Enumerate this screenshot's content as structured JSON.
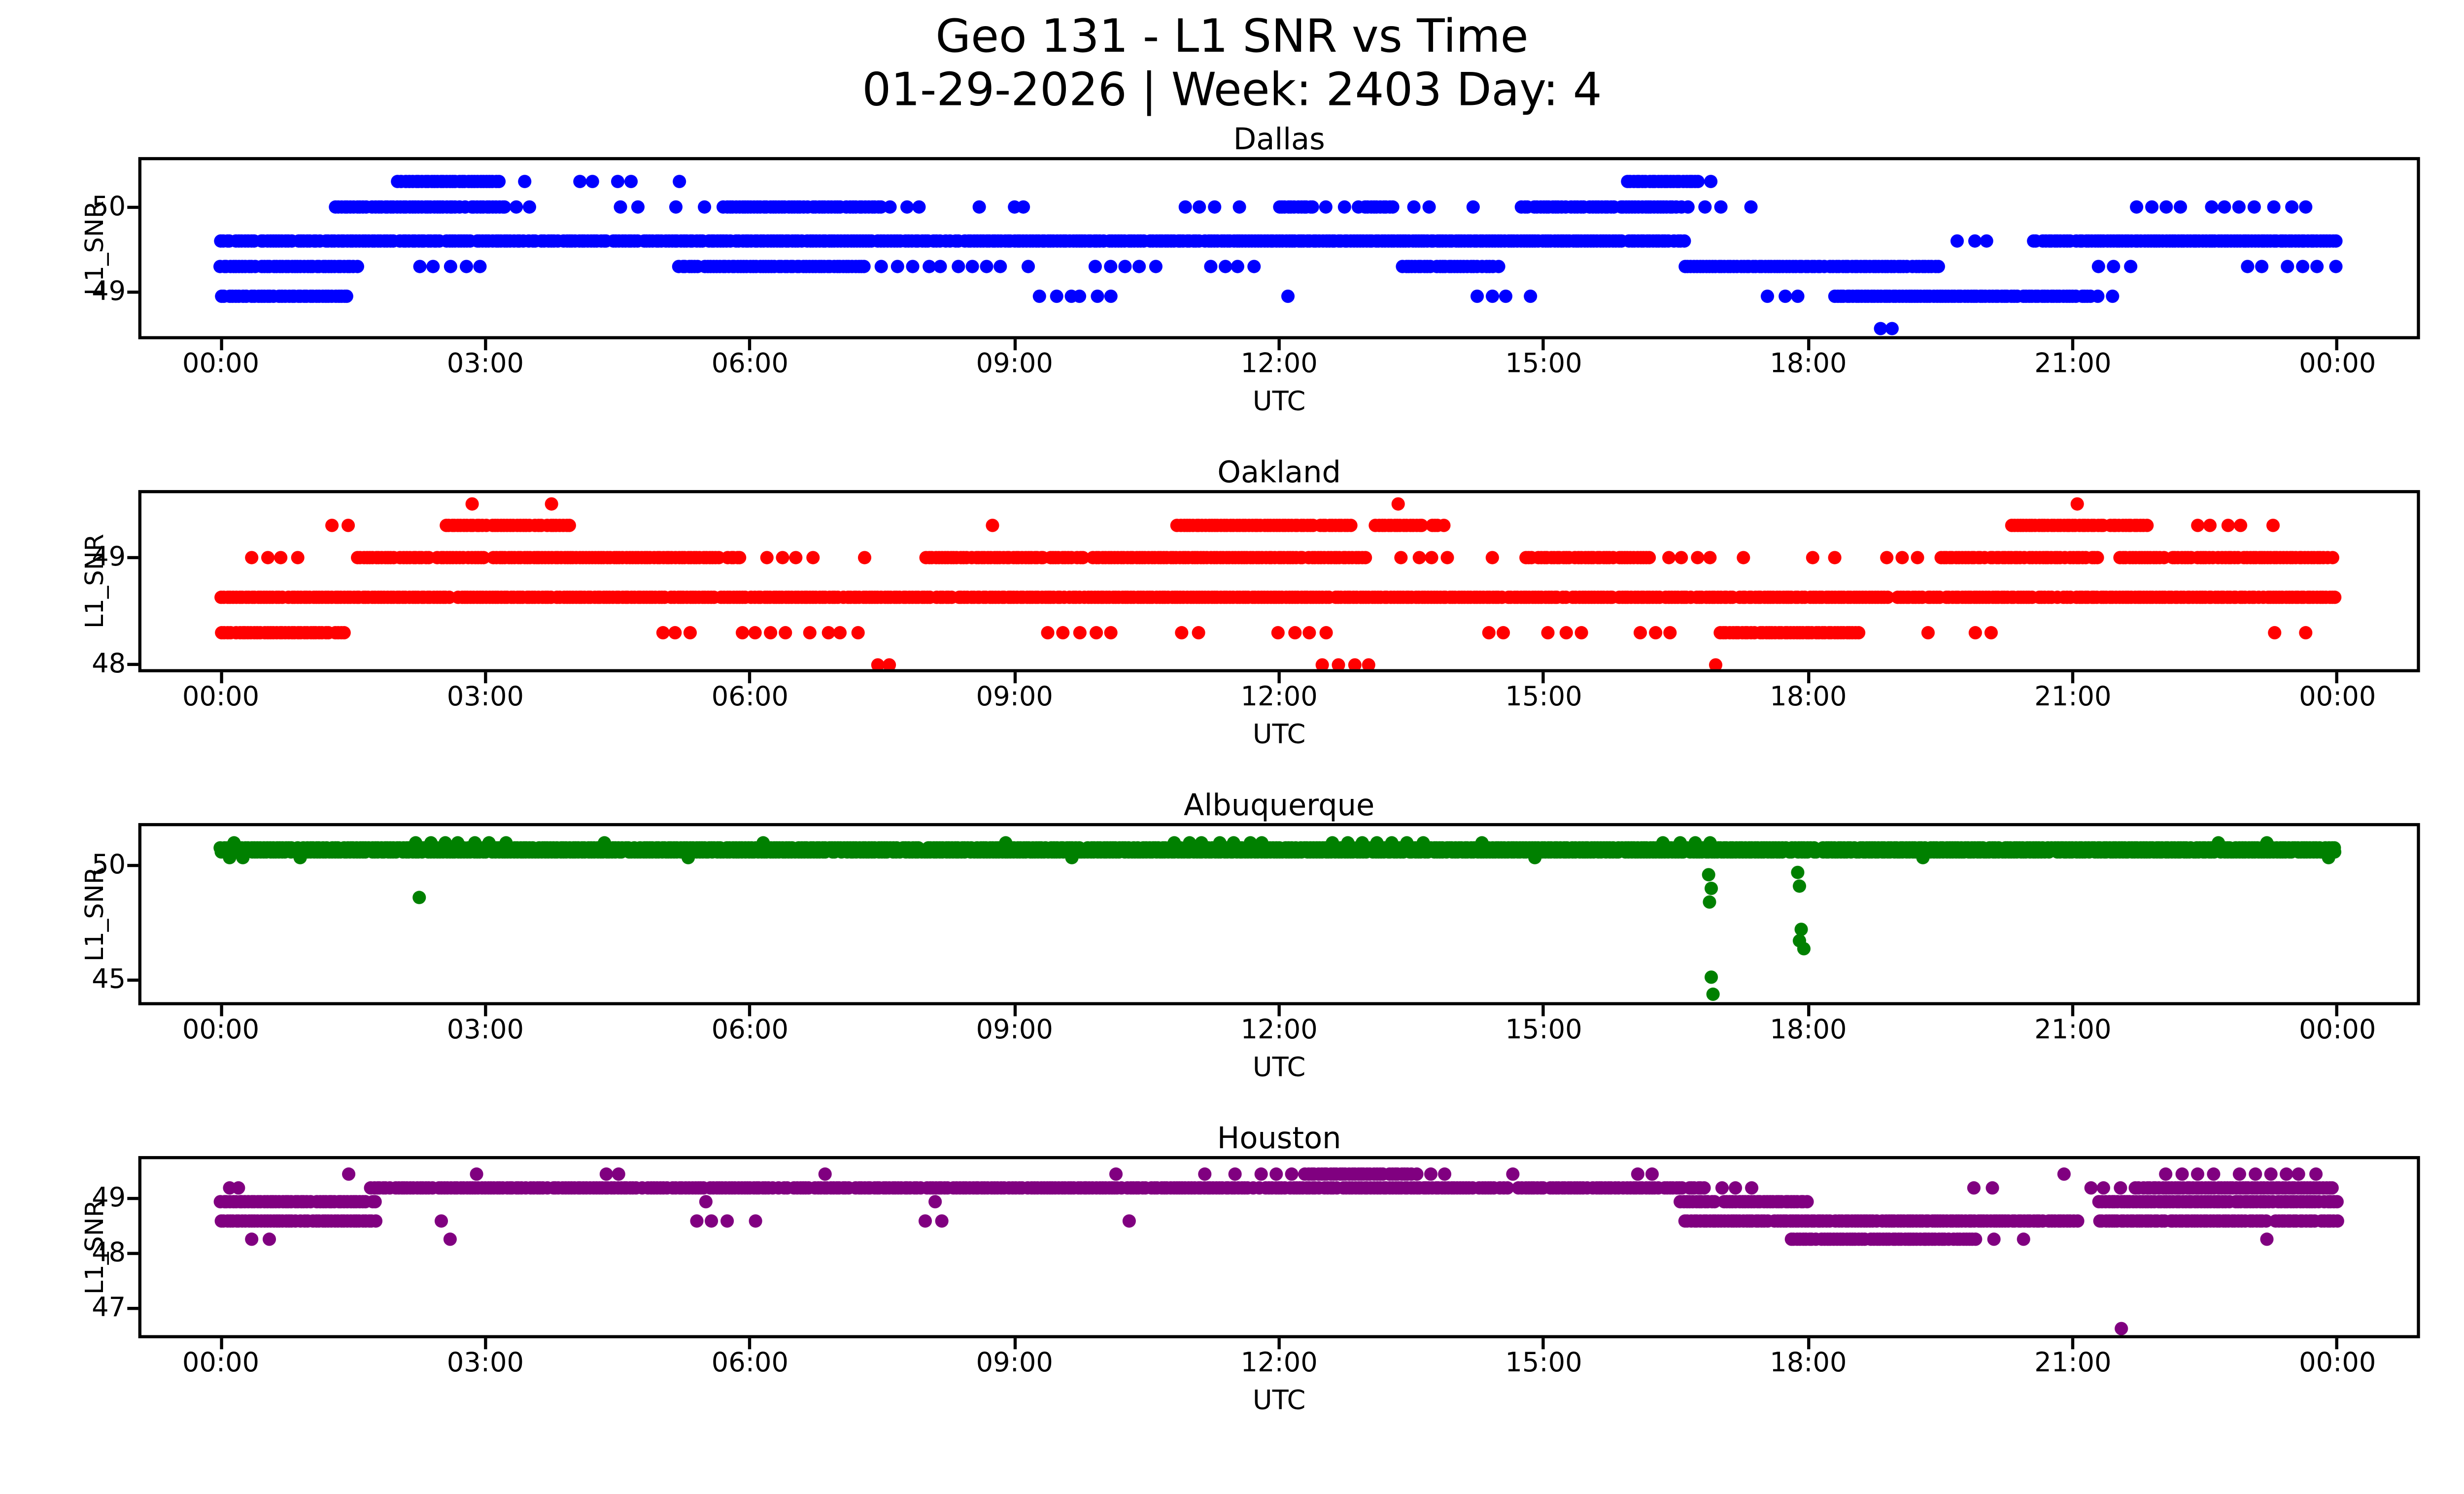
{
  "header": {
    "title_line1": "Geo 131 - L1 SNR vs Time",
    "title_line2": "01-29-2026 | Week: 2403 Day: 4"
  },
  "chart_data": [
    {
      "type": "scatter",
      "title": "Dallas",
      "color": "#0000ff",
      "xlabel": "UTC",
      "ylabel": "L1_SNR",
      "x_unit": "hours_utc_0_to_24",
      "xlim": [
        -0.9,
        24.9
      ],
      "ylim": [
        48.48,
        50.55
      ],
      "xticks": [
        0,
        3,
        6,
        9,
        12,
        15,
        18,
        21,
        24
      ],
      "xticklabels": [
        "00:00",
        "03:00",
        "06:00",
        "09:00",
        "12:00",
        "15:00",
        "18:00",
        "21:00",
        "00:00"
      ],
      "yticks": [
        49,
        50
      ],
      "yticklabels": [
        "49",
        "50"
      ],
      "marker_diameter_px": 8.5,
      "runs": [
        {
          "snr": 50.3,
          "dense": [
            [
              2.0,
              3.17
            ],
            [
              15.95,
              16.78
            ]
          ],
          "sparse": [
            [
              3.45,
              3.65
            ],
            [
              4.05,
              4.3
            ],
            [
              4.5,
              4.75
            ],
            [
              16.9,
              17.05
            ]
          ],
          "dots": [
            5.2
          ]
        },
        {
          "snr": 50.0,
          "dense": [
            [
              1.3,
              3.25
            ],
            [
              5.7,
              7.5
            ],
            [
              12.0,
              12.4
            ],
            [
              12.9,
              13.3
            ],
            [
              14.75,
              16.6
            ]
          ],
          "sparse": [
            [
              4.55,
              4.85
            ],
            [
              5.15,
              5.55
            ],
            [
              7.6,
              7.95
            ],
            [
              10.95,
              11.35
            ],
            [
              12.55,
              12.85
            ],
            [
              13.35,
              13.7
            ],
            [
              16.65,
              17.15
            ],
            [
              21.55,
              22.3
            ],
            [
              22.55,
              23.1
            ],
            [
              23.3,
              23.9
            ]
          ],
          "dots": [
            3.35,
            3.5,
            8.6,
            9.0,
            9.1,
            11.55,
            14.2,
            17.35
          ]
        },
        {
          "snr": 49.6,
          "dense": [
            [
              0.0,
              16.6
            ],
            [
              20.55,
              24.0
            ]
          ],
          "sparse": [
            [
              19.7,
              20.35
            ]
          ],
          "dots": []
        },
        {
          "snr": 49.3,
          "dense": [
            [
              0.0,
              1.55
            ],
            [
              5.2,
              7.3
            ],
            [
              13.4,
              14.5
            ],
            [
              16.6,
              19.5
            ]
          ],
          "sparse": [
            [
              2.25,
              3.05
            ],
            [
              7.5,
              8.35
            ],
            [
              8.5,
              9.2
            ],
            [
              9.9,
              10.6
            ],
            [
              11.2,
              12.2
            ],
            [
              21.3,
              21.75
            ],
            [
              22.8,
              23.25
            ],
            [
              23.45,
              24.0
            ]
          ],
          "dots": []
        },
        {
          "snr": 48.95,
          "dense": [
            [
              0.0,
              1.45
            ],
            [
              18.3,
              21.3
            ]
          ],
          "sparse": [
            [
              9.3,
              9.7
            ],
            [
              9.75,
              10.15
            ],
            [
              14.25,
              14.7
            ],
            [
              17.55,
              18.0
            ]
          ],
          "dots": [
            12.1,
            14.85,
            21.45
          ]
        },
        {
          "snr": 48.57,
          "dense": [],
          "sparse": [],
          "dots": [
            18.82,
            18.95
          ]
        }
      ],
      "outliers": []
    },
    {
      "type": "scatter",
      "title": "Oakland",
      "color": "#ff0000",
      "xlabel": "UTC",
      "ylabel": "L1_SNR",
      "x_unit": "hours_utc_0_to_24",
      "xlim": [
        -0.9,
        24.9
      ],
      "ylim": [
        47.96,
        49.6
      ],
      "xticks": [
        0,
        3,
        6,
        9,
        12,
        15,
        18,
        21,
        24
      ],
      "xticklabels": [
        "00:00",
        "03:00",
        "06:00",
        "09:00",
        "12:00",
        "15:00",
        "18:00",
        "21:00",
        "00:00"
      ],
      "yticks": [
        48,
        49
      ],
      "yticklabels": [
        "48",
        "49"
      ],
      "marker_diameter_px": 8.5,
      "runs": [
        {
          "snr": 49.5,
          "dense": [],
          "sparse": [],
          "dots": [
            2.85,
            3.75,
            13.35,
            21.05
          ]
        },
        {
          "snr": 49.3,
          "dense": [
            [
              2.55,
              3.95
            ],
            [
              10.85,
              12.85
            ],
            [
              13.1,
              13.9
            ],
            [
              20.3,
              21.9
            ]
          ],
          "sparse": [
            [
              1.25,
              1.6
            ],
            [
              22.4,
              23.4
            ]
          ],
          "dots": [
            8.75
          ]
        },
        {
          "snr": 49.0,
          "dense": [
            [
              1.55,
              5.9
            ],
            [
              8.0,
              13.0
            ],
            [
              14.8,
              16.2
            ],
            [
              19.5,
              21.3
            ],
            [
              21.5,
              24.0
            ]
          ],
          "sparse": [
            [
              0.35,
              0.95
            ],
            [
              6.2,
              6.75
            ],
            [
              13.4,
              14.45
            ],
            [
              16.4,
              17.3
            ],
            [
              18.9,
              19.35
            ]
          ],
          "dots": [
            7.3,
            18.05,
            18.3
          ]
        },
        {
          "snr": 48.63,
          "dense": [
            [
              0.0,
              24.0
            ]
          ],
          "sparse": [],
          "dots": []
        },
        {
          "snr": 48.3,
          "dense": [
            [
              0.0,
              1.4
            ],
            [
              17.0,
              18.6
            ]
          ],
          "sparse": [
            [
              5.0,
              5.35
            ],
            [
              5.9,
              6.5
            ],
            [
              6.7,
              7.3
            ],
            [
              9.4,
              10.4
            ],
            [
              10.9,
              11.2
            ],
            [
              12.0,
              12.55
            ],
            [
              14.2,
              14.55
            ],
            [
              14.9,
              15.45
            ],
            [
              16.1,
              16.45
            ],
            [
              19.2,
              19.45
            ],
            [
              19.9,
              20.2
            ],
            [
              23.3,
              23.75
            ]
          ],
          "dots": []
        },
        {
          "snr": 48.0,
          "dense": [],
          "sparse": [
            [
              12.5,
              13.1
            ]
          ],
          "dots": [
            7.45,
            7.58,
            16.95
          ]
        }
      ],
      "outliers": []
    },
    {
      "type": "scatter",
      "title": "Albuquerque",
      "color": "#008000",
      "xlabel": "UTC",
      "ylabel": "L1_SNR",
      "x_unit": "hours_utc_0_to_24",
      "xlim": [
        -0.9,
        24.9
      ],
      "ylim": [
        44.0,
        51.73
      ],
      "xticks": [
        0,
        3,
        6,
        9,
        12,
        15,
        18,
        21,
        24
      ],
      "xticklabels": [
        "00:00",
        "03:00",
        "06:00",
        "09:00",
        "12:00",
        "15:00",
        "18:00",
        "21:00",
        "00:00"
      ],
      "yticks": [
        45,
        50
      ],
      "yticklabels": [
        "45",
        "50"
      ],
      "marker_diameter_px": 8.5,
      "runs": [
        {
          "snr": 51.0,
          "dense": [],
          "sparse": [
            [
              2.2,
              3.3
            ],
            [
              10.8,
              12.0
            ],
            [
              12.6,
              13.8
            ],
            [
              16.2,
              16.9
            ]
          ],
          "dots": [
            0.15,
            4.35,
            6.15,
            8.9,
            14.3,
            22.65,
            23.2
          ]
        },
        {
          "snr": 50.78,
          "dense": [
            [
              0.0,
              24.0
            ]
          ],
          "sparse": [],
          "dots": []
        },
        {
          "snr": 50.6,
          "dense": [
            [
              0.0,
              24.0
            ]
          ],
          "sparse": [],
          "dots": []
        },
        {
          "snr": 50.35,
          "dense": [],
          "sparse": [],
          "dots": [
            0.1,
            0.25,
            0.9,
            5.3,
            9.65,
            14.9,
            19.3,
            23.9
          ]
        }
      ],
      "outliers": [
        [
          2.25,
          48.6
        ],
        [
          16.87,
          49.6
        ],
        [
          16.9,
          49.0
        ],
        [
          16.88,
          48.4
        ],
        [
          16.9,
          45.1
        ],
        [
          16.92,
          44.35
        ],
        [
          17.88,
          49.7
        ],
        [
          17.9,
          49.1
        ],
        [
          17.92,
          47.2
        ],
        [
          17.9,
          46.7
        ],
        [
          17.95,
          46.35
        ]
      ]
    },
    {
      "type": "scatter",
      "title": "Houston",
      "color": "#800080",
      "xlabel": "UTC",
      "ylabel": "L1_SNR",
      "x_unit": "hours_utc_0_to_24",
      "xlim": [
        -0.9,
        24.9
      ],
      "ylim": [
        46.53,
        49.72
      ],
      "xticks": [
        0,
        3,
        6,
        9,
        12,
        15,
        18,
        21,
        24
      ],
      "xticklabels": [
        "00:00",
        "03:00",
        "06:00",
        "09:00",
        "12:00",
        "15:00",
        "18:00",
        "21:00",
        "00:00"
      ],
      "yticks": [
        47,
        48,
        49
      ],
      "yticklabels": [
        "47",
        "48",
        "49"
      ],
      "marker_diameter_px": 8.5,
      "runs": [
        {
          "snr": 49.45,
          "dense": [
            [
              12.3,
              13.5
            ]
          ],
          "sparse": [
            [
              4.35,
              4.6
            ],
            [
              6.7,
              7.0
            ],
            [
              11.0,
              11.25
            ],
            [
              11.8,
              12.15
            ],
            [
              13.55,
              13.95
            ],
            [
              15.9,
              16.35
            ],
            [
              21.9,
              22.6
            ],
            [
              22.9,
              23.9
            ]
          ],
          "dots": [
            1.45,
            2.9,
            10.15,
            11.5,
            14.65,
            20.9
          ]
        },
        {
          "snr": 49.2,
          "dense": [
            [
              1.7,
              16.85
            ],
            [
              21.7,
              24.0
            ]
          ],
          "sparse": [
            [
              17.0,
              17.6
            ],
            [
              19.9,
              20.2
            ],
            [
              21.2,
              21.55
            ]
          ],
          "dots": [
            0.1,
            0.2
          ]
        },
        {
          "snr": 48.95,
          "dense": [
            [
              0.0,
              1.75
            ],
            [
              16.55,
              18.0
            ],
            [
              21.3,
              24.0
            ]
          ],
          "sparse": [],
          "dots": [
            5.5,
            8.1
          ]
        },
        {
          "snr": 48.6,
          "dense": [
            [
              0.0,
              1.75
            ],
            [
              16.6,
              21.05
            ],
            [
              21.3,
              24.0
            ]
          ],
          "sparse": [
            [
              5.4,
              6.2
            ],
            [
              8.0,
              8.25
            ]
          ],
          "dots": [
            2.5,
            10.3
          ]
        },
        {
          "snr": 48.27,
          "dense": [
            [
              17.8,
              19.9
            ]
          ],
          "sparse": [
            [
              20.1,
              20.45
            ]
          ],
          "dots": [
            0.35,
            0.55,
            2.6,
            23.2
          ]
        },
        {
          "snr": 46.65,
          "dense": [],
          "sparse": [],
          "dots": [
            21.55
          ]
        }
      ],
      "outliers": []
    }
  ]
}
